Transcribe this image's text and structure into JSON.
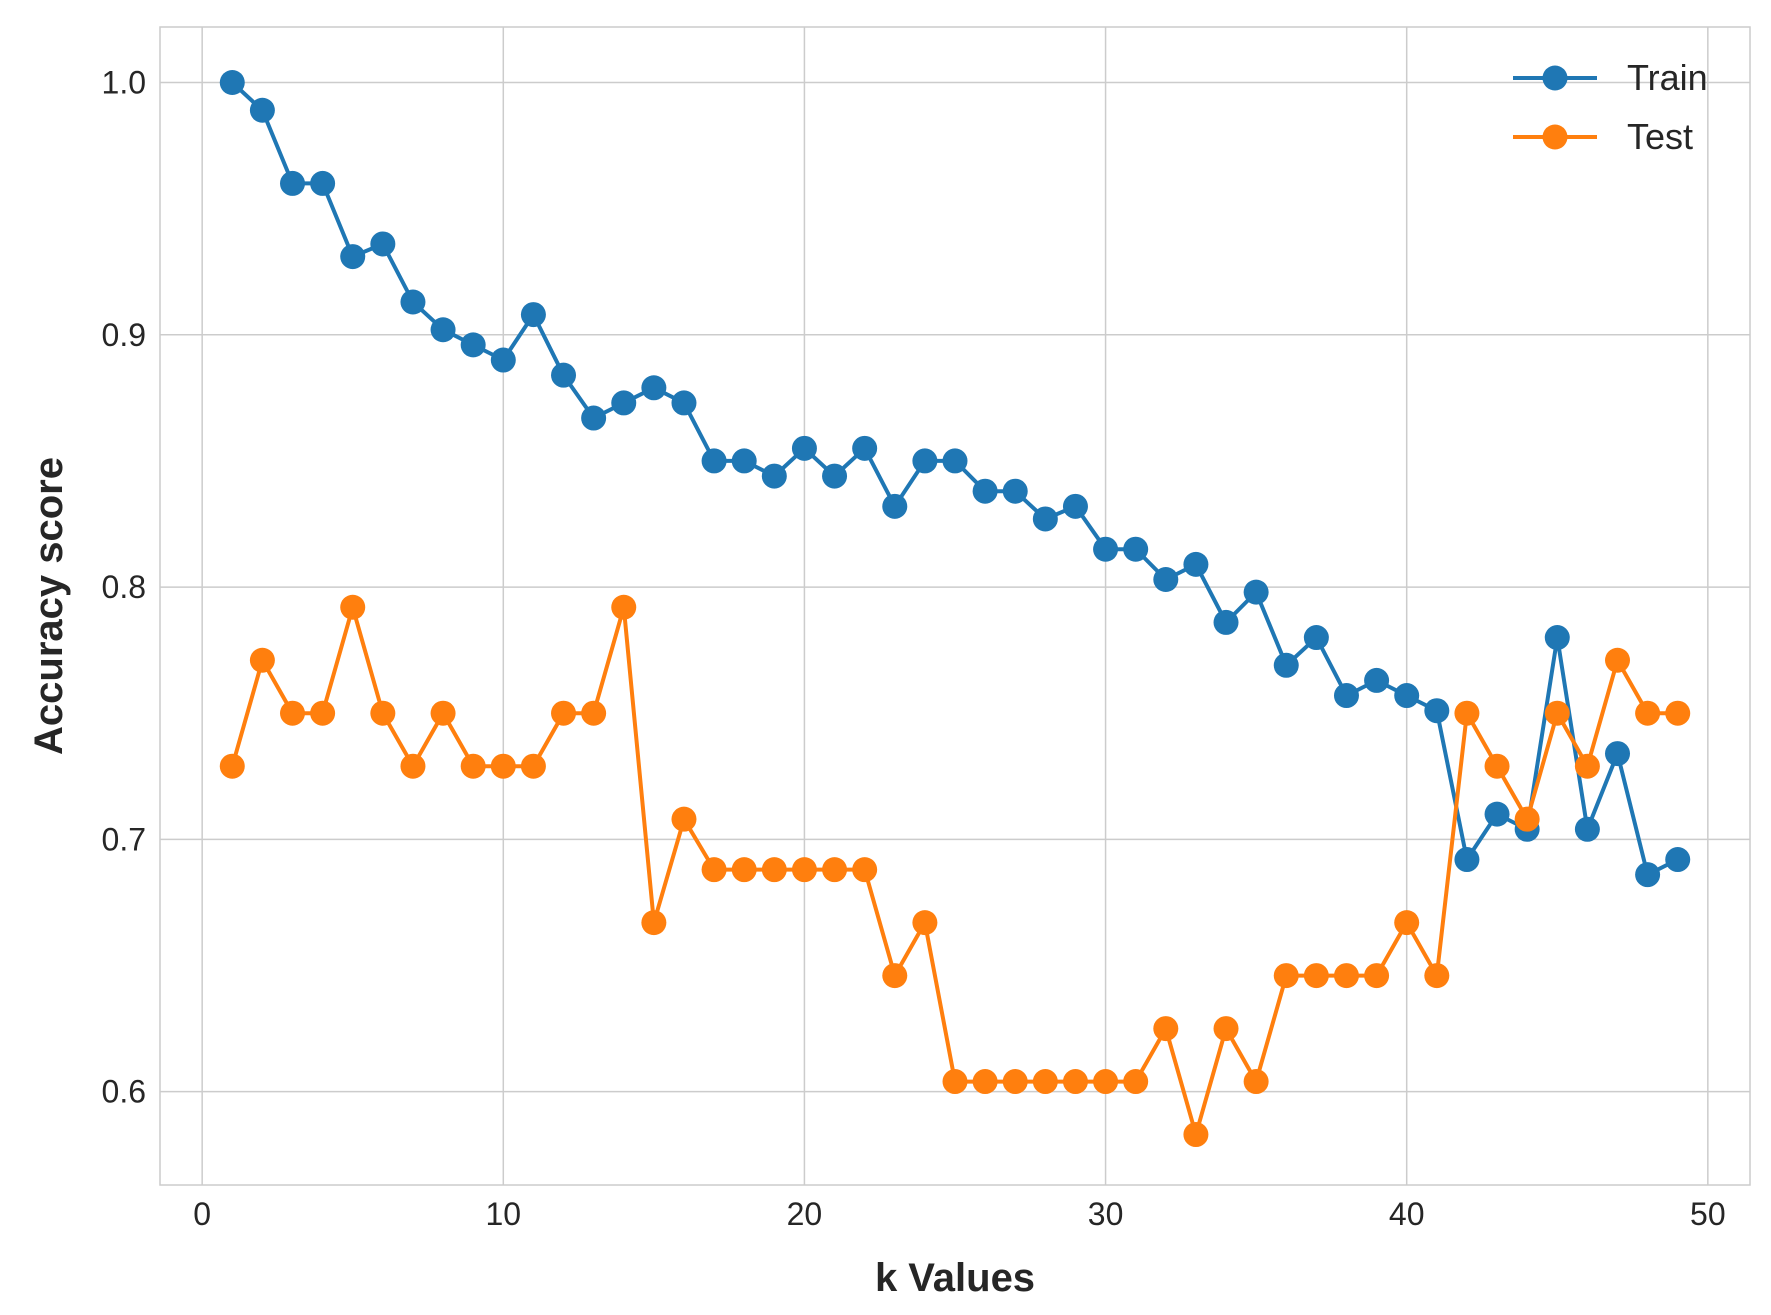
{
  "chart_data": {
    "type": "line",
    "xlabel": "k Values",
    "ylabel": "Accuracy score",
    "xlim": [
      -1.4,
      51.4
    ],
    "ylim": [
      0.563,
      1.022
    ],
    "xticks": [
      0,
      10,
      20,
      30,
      40,
      50
    ],
    "yticks": [
      0.6,
      0.7,
      0.8,
      0.9,
      1.0
    ],
    "xtick_labels": [
      "0",
      "10",
      "20",
      "30",
      "40",
      "50"
    ],
    "ytick_labels": [
      "0.6",
      "0.7",
      "0.8",
      "0.9",
      "1.0"
    ],
    "grid": true,
    "legend_position": "top-right",
    "x": [
      1,
      2,
      3,
      4,
      5,
      6,
      7,
      8,
      9,
      10,
      11,
      12,
      13,
      14,
      15,
      16,
      17,
      18,
      19,
      20,
      21,
      22,
      23,
      24,
      25,
      26,
      27,
      28,
      29,
      30,
      31,
      32,
      33,
      34,
      35,
      36,
      37,
      38,
      39,
      40,
      41,
      42,
      43,
      44,
      45,
      46,
      47,
      48,
      49
    ],
    "series": [
      {
        "name": "Train",
        "color": "#1f77b4",
        "values": [
          1.0,
          0.989,
          0.96,
          0.96,
          0.931,
          0.936,
          0.913,
          0.902,
          0.896,
          0.89,
          0.908,
          0.884,
          0.867,
          0.873,
          0.879,
          0.873,
          0.85,
          0.85,
          0.844,
          0.855,
          0.844,
          0.855,
          0.832,
          0.85,
          0.85,
          0.838,
          0.838,
          0.827,
          0.832,
          0.815,
          0.815,
          0.803,
          0.809,
          0.786,
          0.798,
          0.769,
          0.78,
          0.757,
          0.763,
          0.757,
          0.751,
          0.692,
          0.71,
          0.704,
          0.78,
          0.704,
          0.734,
          0.686,
          0.692
        ]
      },
      {
        "name": "Test",
        "color": "#ff7f0e",
        "values": [
          0.729,
          0.771,
          0.75,
          0.75,
          0.792,
          0.75,
          0.729,
          0.75,
          0.729,
          0.729,
          0.729,
          0.75,
          0.75,
          0.792,
          0.667,
          0.708,
          0.688,
          0.688,
          0.688,
          0.688,
          0.688,
          0.688,
          0.646,
          0.667,
          0.604,
          0.604,
          0.604,
          0.604,
          0.604,
          0.604,
          0.604,
          0.625,
          0.583,
          0.625,
          0.604,
          0.646,
          0.646,
          0.646,
          0.646,
          0.667,
          0.646,
          0.75,
          0.729,
          0.708,
          0.75,
          0.729,
          0.771,
          0.75,
          0.75
        ]
      }
    ]
  }
}
